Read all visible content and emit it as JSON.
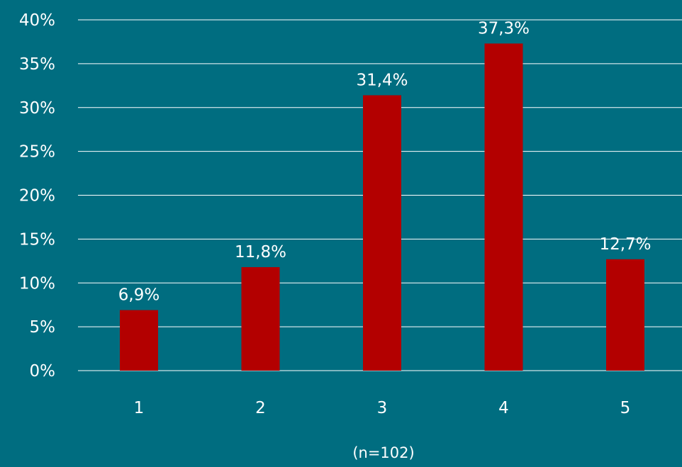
{
  "chart_data": {
    "type": "bar",
    "categories": [
      "1",
      "2",
      "3",
      "4",
      "5"
    ],
    "values": [
      6.9,
      11.8,
      31.4,
      37.3,
      12.7
    ],
    "data_labels": [
      "6,9%",
      "11,8%",
      "31,4%",
      "37,3%",
      "12,7%"
    ],
    "y_ticks": [
      0,
      5,
      10,
      15,
      20,
      25,
      30,
      35,
      40
    ],
    "y_tick_labels": [
      "0%",
      "5%",
      "10%",
      "15%",
      "20%",
      "25%",
      "30%",
      "35%",
      "40%"
    ],
    "ylim": [
      0,
      40
    ],
    "grid": true,
    "legend": "none",
    "note": "(n=102)",
    "colors": {
      "background": "#006d80",
      "bar": "#b30000",
      "gridline": "#ffffff",
      "text": "#ffffff"
    }
  }
}
